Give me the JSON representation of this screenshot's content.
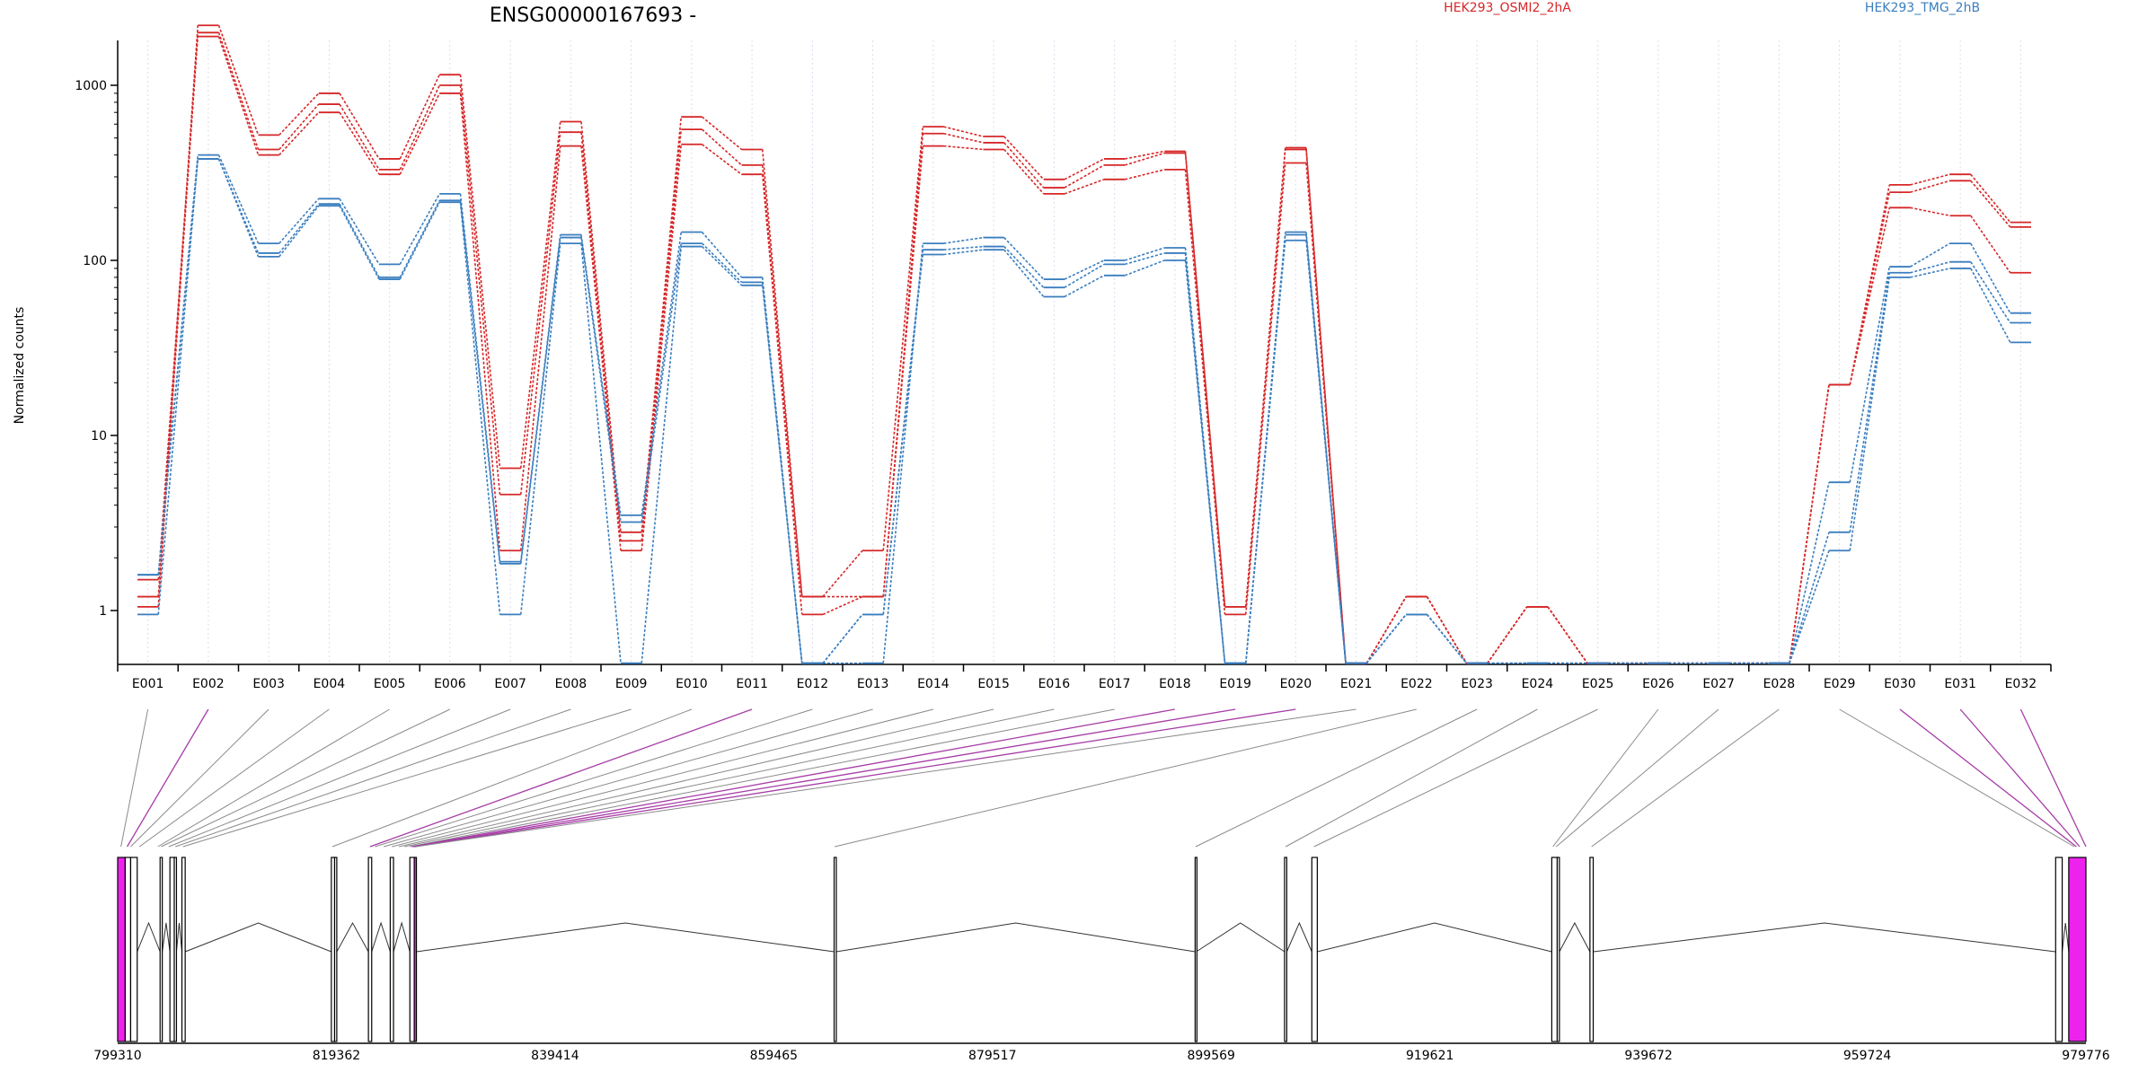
{
  "chart_data": {
    "type": "line",
    "title": "ENSG00000167693 -",
    "ylabel": "Normalized counts",
    "xlabel": "",
    "y_scale": "log",
    "yticks": [
      1,
      10,
      100,
      1000
    ],
    "ytick_labels": [
      "1",
      "10",
      "100",
      "1000"
    ],
    "grid": false,
    "legend": "top",
    "colors": {
      "osmi": "#d62728",
      "tmg": "#3a7ebf",
      "exon_highlight": "#ee22ee",
      "connector_highlight": "#a63ca6",
      "connector": "#8a8a8a"
    },
    "categories": [
      "E001",
      "E002",
      "E003",
      "E004",
      "E005",
      "E006",
      "E007",
      "E008",
      "E009",
      "E010",
      "E011",
      "E012",
      "E013",
      "E014",
      "E015",
      "E016",
      "E017",
      "E018",
      "E019",
      "E020",
      "E021",
      "E022",
      "E023",
      "E024",
      "E025",
      "E026",
      "E027",
      "E028",
      "E029",
      "E030",
      "E031",
      "E032"
    ],
    "series": [
      {
        "name": "HEK293_OSMI2_2hA",
        "group": "osmi",
        "values": [
          1.2,
          2200,
          520,
          900,
          380,
          1150,
          6.5,
          620,
          2.8,
          660,
          430,
          1.2,
          2.2,
          580,
          510,
          290,
          380,
          420,
          1.05,
          440,
          0.5,
          1.2,
          0.5,
          1.05,
          0.5,
          0.5,
          0.5,
          0.5,
          19.5,
          270,
          310,
          165
        ]
      },
      {
        "group": "osmi",
        "values": [
          1.05,
          2000,
          430,
          780,
          330,
          1000,
          4.6,
          540,
          2.5,
          560,
          350,
          1.2,
          1.2,
          530,
          470,
          260,
          350,
          410,
          1.05,
          430,
          0.5,
          1.2,
          0.5,
          1.05,
          0.5,
          0.5,
          0.5,
          0.5,
          19.5,
          245,
          285,
          155
        ]
      },
      {
        "group": "osmi",
        "values": [
          1.5,
          1900,
          400,
          700,
          310,
          900,
          2.2,
          450,
          2.2,
          460,
          310,
          0.95,
          1.2,
          450,
          430,
          240,
          290,
          330,
          0.95,
          360,
          0.5,
          1.2,
          0.5,
          1.05,
          0.5,
          0.5,
          0.5,
          0.5,
          19.5,
          200,
          180,
          85
        ]
      },
      {
        "name": "HEK293_TMG_2hB",
        "group": "tmg",
        "values": [
          1.6,
          400,
          125,
          225,
          95,
          240,
          1.9,
          140,
          3.5,
          145,
          80,
          0.5,
          0.5,
          125,
          135,
          78,
          100,
          118,
          0.5,
          145,
          0.5,
          0.95,
          0.5,
          0.5,
          0.5,
          0.5,
          0.5,
          0.5,
          5.4,
          92,
          125,
          50
        ]
      },
      {
        "group": "tmg",
        "values": [
          0.95,
          380,
          110,
          210,
          80,
          220,
          1.85,
          135,
          3.2,
          125,
          75,
          0.5,
          0.95,
          115,
          120,
          70,
          95,
          110,
          0.5,
          140,
          0.5,
          0.95,
          0.5,
          0.5,
          0.5,
          0.5,
          0.5,
          0.5,
          2.8,
          85,
          98,
          44
        ]
      },
      {
        "group": "tmg",
        "values": [
          1.6,
          380,
          105,
          205,
          78,
          215,
          0.95,
          125,
          0.5,
          120,
          72,
          0.5,
          0.95,
          108,
          115,
          62,
          82,
          100,
          0.5,
          130,
          0.5,
          0.95,
          0.5,
          0.5,
          0.5,
          0.5,
          0.5,
          0.5,
          2.2,
          80,
          90,
          34
        ]
      }
    ],
    "genomic_axis": {
      "tick_labels": [
        "799310",
        "819362",
        "839414",
        "859465",
        "879517",
        "899569",
        "919621",
        "939672",
        "959724",
        "979776"
      ],
      "range": [
        799310,
        979776
      ]
    },
    "exon_model": {
      "exons": [
        {
          "id": "E001",
          "start": 799310,
          "end": 800000,
          "highlight": true
        },
        {
          "id": "E002",
          "start": 800000,
          "end": 800500,
          "highlight": false
        },
        {
          "id": "E003",
          "start": 800500,
          "end": 801100,
          "highlight": false
        },
        {
          "id": "E004",
          "start": 803200,
          "end": 803400,
          "highlight": false
        },
        {
          "id": "E005",
          "start": 804100,
          "end": 804500,
          "highlight": false
        },
        {
          "id": "E006",
          "start": 804500,
          "end": 804700,
          "highlight": false
        },
        {
          "id": "E007",
          "start": 805200,
          "end": 805500,
          "highlight": false
        },
        {
          "id": "E008",
          "start": 818900,
          "end": 819200,
          "highlight": false
        },
        {
          "id": "E009",
          "start": 819200,
          "end": 819400,
          "highlight": false
        },
        {
          "id": "E010",
          "start": 822300,
          "end": 822600,
          "highlight": false
        },
        {
          "id": "E011",
          "start": 824300,
          "end": 824600,
          "highlight": false
        },
        {
          "id": "E012",
          "start": 826100,
          "end": 826500,
          "highlight": false
        },
        {
          "id": "E013",
          "start": 826500,
          "end": 826700,
          "highlight": true
        },
        {
          "id": "E014",
          "start": 865000,
          "end": 865200,
          "highlight": false
        },
        {
          "id": "E015",
          "start": 898100,
          "end": 898200,
          "highlight": false
        },
        {
          "id": "E016",
          "start": 906300,
          "end": 906500,
          "highlight": false
        },
        {
          "id": "E017",
          "start": 908800,
          "end": 909300,
          "highlight": false
        },
        {
          "id": "E018",
          "start": 930800,
          "end": 931300,
          "highlight": false
        },
        {
          "id": "E019",
          "start": 931300,
          "end": 931500,
          "highlight": false
        },
        {
          "id": "E020",
          "start": 934300,
          "end": 934600,
          "highlight": false
        },
        {
          "id": "E021",
          "start": 977000,
          "end": 977600,
          "highlight": false
        },
        {
          "id": "E022",
          "start": 978200,
          "end": 979776,
          "highlight": true
        }
      ],
      "gaps": [
        {
          "start": 805500,
          "end": 818900
        },
        {
          "start": 826700,
          "end": 865000
        },
        {
          "start": 865200,
          "end": 898100
        },
        {
          "start": 898200,
          "end": 906300
        },
        {
          "start": 909300,
          "end": 930800
        },
        {
          "start": 934600,
          "end": 977000
        }
      ],
      "connector_targets": [
        799610,
        800180,
        800500,
        801300,
        803000,
        803300,
        804000,
        804600,
        805300,
        819000,
        822450,
        822900,
        823700,
        824450,
        825100,
        825600,
        826100,
        826300,
        826450,
        826550,
        826650,
        865050,
        898150,
        906400,
        909000,
        930900,
        931200,
        934450,
        978700,
        978900,
        979200,
        979776
      ],
      "connector_highlight": [
        false,
        true,
        false,
        false,
        false,
        false,
        false,
        false,
        false,
        false,
        true,
        false,
        false,
        false,
        false,
        false,
        false,
        true,
        true,
        true,
        false,
        false,
        false,
        false,
        false,
        false,
        false,
        false,
        false,
        true,
        true,
        true
      ]
    }
  }
}
